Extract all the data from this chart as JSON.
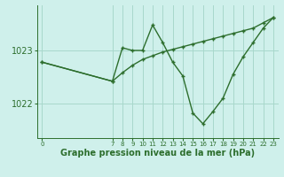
{
  "background_color": "#cff0eb",
  "line_color": "#2d6e2d",
  "grid_color": "#a8d8cc",
  "x_wavy": [
    0,
    7,
    8,
    9,
    10,
    11,
    12,
    13,
    14,
    15,
    16,
    17,
    18,
    19,
    20,
    21,
    22,
    23
  ],
  "y_wavy": [
    1022.78,
    1022.42,
    1023.05,
    1023.0,
    1023.0,
    1023.48,
    1023.15,
    1022.78,
    1022.52,
    1021.82,
    1021.62,
    1021.85,
    1022.1,
    1022.55,
    1022.88,
    1023.15,
    1023.42,
    1023.62
  ],
  "x_trend": [
    0,
    7,
    8,
    9,
    10,
    11,
    12,
    13,
    14,
    15,
    16,
    17,
    18,
    19,
    20,
    21,
    22,
    23
  ],
  "y_trend": [
    1022.78,
    1022.42,
    1022.58,
    1022.72,
    1022.83,
    1022.9,
    1022.97,
    1023.02,
    1023.07,
    1023.12,
    1023.17,
    1023.22,
    1023.27,
    1023.32,
    1023.37,
    1023.42,
    1023.52,
    1023.62
  ],
  "ylim": [
    1021.35,
    1023.85
  ],
  "yticks": [
    1022,
    1023
  ],
  "xlim": [
    -0.5,
    23.5
  ],
  "xticks": [
    0,
    7,
    8,
    9,
    10,
    11,
    12,
    13,
    14,
    15,
    16,
    17,
    18,
    19,
    20,
    21,
    22,
    23
  ],
  "xlabel": "Graphe pression niveau de la mer (hPa)",
  "ytick_fontsize": 7,
  "xtick_fontsize": 5,
  "xlabel_fontsize": 7
}
